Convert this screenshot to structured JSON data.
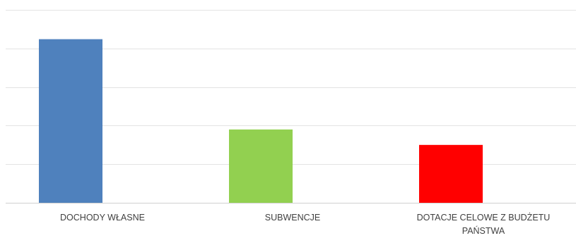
{
  "chart_data": {
    "type": "bar",
    "categories": [
      "DOCHODY WŁASNE",
      "SUBWENCJE",
      "DOTACJE CELOWE Z BUDŻETU PAŃSTWA"
    ],
    "category_label_lines": [
      [
        "DOCHODY WŁASNE"
      ],
      [
        "SUBWENCJE"
      ],
      [
        "DOTACJE CELOWE Z BUDŻETU",
        "PAŃSTWA"
      ]
    ],
    "values": [
      4.24,
      1.9,
      1.5
    ],
    "colors": [
      "#4f81bd",
      "#92d050",
      "#ff0000"
    ],
    "ylim": [
      0,
      5
    ],
    "gridlines": 5,
    "grid": true,
    "title": "",
    "xlabel": "",
    "ylabel": ""
  }
}
